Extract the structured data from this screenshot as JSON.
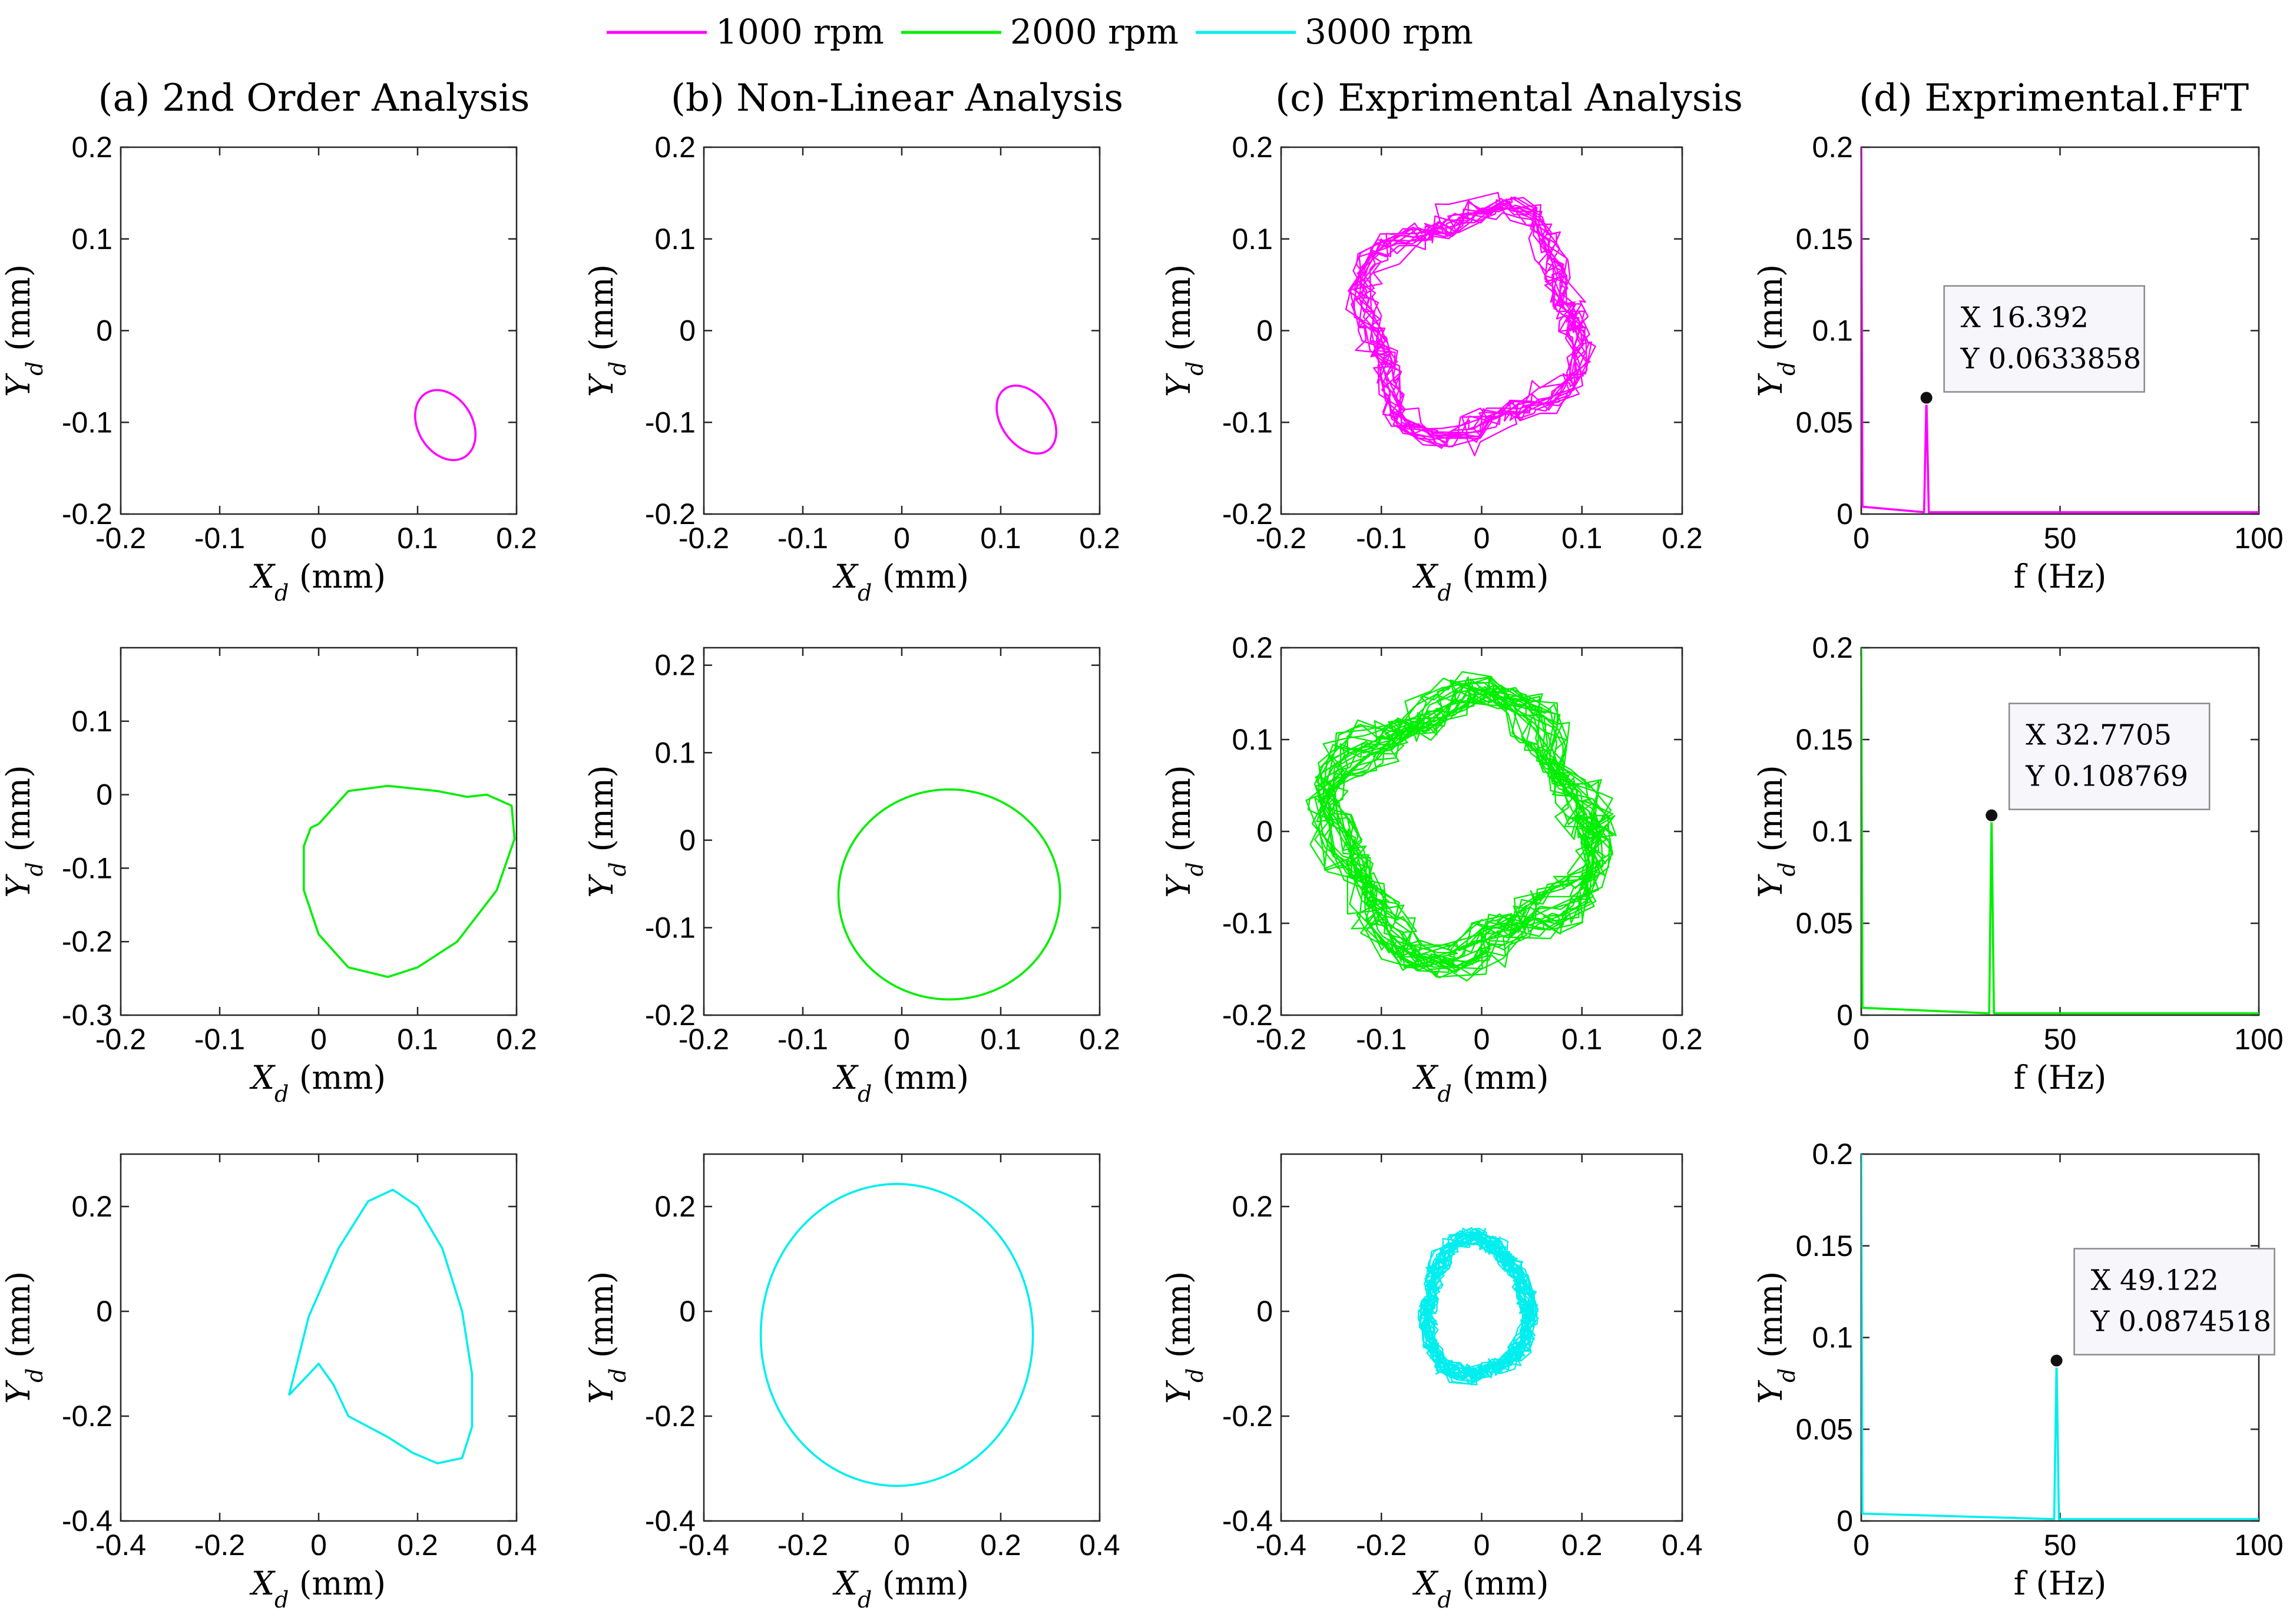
{
  "legend": [
    {
      "label": "1000 rpm",
      "color": "#ff00ff"
    },
    {
      "label": "2000 rpm",
      "color": "#00ee00"
    },
    {
      "label": "3000 rpm",
      "color": "#00eeee"
    }
  ],
  "column_titles": [
    "(a) 2nd Order Analysis",
    "(b) Non-Linear Analysis",
    "(c) Exprimental Analysis",
    "(d) Exprimental.FFT"
  ],
  "chart_data": [
    {
      "id": "a1",
      "type": "line",
      "kind": "orbit",
      "series": [
        {
          "name": "1000 rpm",
          "cx": 0.128,
          "cy": -0.103,
          "rx": 0.028,
          "ry": 0.04,
          "rot": 25
        }
      ],
      "xlim": [
        -0.2,
        0.2
      ],
      "ylim": [
        -0.2,
        0.2
      ],
      "xticks": [
        -0.2,
        -0.1,
        0,
        0.1,
        0.2
      ],
      "yticks": [
        0.2,
        0.1,
        0,
        -0.1,
        -0.2
      ],
      "xtick_labels": [
        "-0.2",
        "-0.1",
        "0",
        "0.1",
        "0.2"
      ],
      "ytick_labels": [
        "0.2",
        "0.1",
        "0",
        "-0.1",
        "-0.2"
      ],
      "xlabel": "X_d (mm)",
      "ylabel": "Y_d (mm)"
    },
    {
      "id": "b1",
      "type": "line",
      "kind": "orbit",
      "series": [
        {
          "name": "1000 rpm",
          "cx": 0.126,
          "cy": -0.097,
          "rx": 0.026,
          "ry": 0.04,
          "rot": 30
        }
      ],
      "xlim": [
        -0.2,
        0.2
      ],
      "ylim": [
        -0.2,
        0.2
      ],
      "xticks": [
        -0.2,
        -0.1,
        0,
        0.1,
        0.2
      ],
      "yticks": [
        0.2,
        0.1,
        0,
        -0.1,
        -0.2
      ],
      "xtick_labels": [
        "-0.2",
        "-0.1",
        "0",
        "0.1",
        "0.2"
      ],
      "ytick_labels": [
        "0.2",
        "0.1",
        "0",
        "-0.1",
        "-0.2"
      ],
      "xlabel": "X_d (mm)",
      "ylabel": "Y_d (mm)"
    },
    {
      "id": "c1",
      "type": "line",
      "kind": "orbit-experimental",
      "series": [
        {
          "name": "1000 rpm",
          "cx": -0.01,
          "cy": 0.01,
          "rx": 0.105,
          "ry": 0.12,
          "harmonic": 4,
          "amp": 0.015,
          "noise": 0.012,
          "loops": 14
        }
      ],
      "xlim": [
        -0.2,
        0.2
      ],
      "ylim": [
        -0.2,
        0.2
      ],
      "xticks": [
        -0.2,
        -0.1,
        0,
        0.1,
        0.2
      ],
      "yticks": [
        0.2,
        0.1,
        0,
        -0.1,
        -0.2
      ],
      "xtick_labels": [
        "-0.2",
        "-0.1",
        "0",
        "0.1",
        "0.2"
      ],
      "ytick_labels": [
        "0.2",
        "0.1",
        "0",
        "-0.1",
        "-0.2"
      ],
      "xlabel": "X_d (mm)",
      "ylabel": "Y_d (mm)"
    },
    {
      "id": "d1",
      "type": "line",
      "kind": "fft",
      "series": [
        {
          "name": "1000 rpm",
          "peak_x": 16.392,
          "peak_y": 0.0633858,
          "edge_y": 0.2
        }
      ],
      "datatip": {
        "x_label": "X 16.392",
        "y_label": "Y 0.0633858",
        "x": 16.392,
        "y": 0.0633858
      },
      "xlim": [
        0,
        100
      ],
      "ylim": [
        0,
        0.2
      ],
      "xticks": [
        0,
        50,
        100
      ],
      "yticks": [
        0.2,
        0.15,
        0.1,
        0.05,
        0
      ],
      "xtick_labels": [
        "0",
        "50",
        "100"
      ],
      "ytick_labels": [
        "0.2",
        "0.15",
        "0.1",
        "0.05",
        "0"
      ],
      "xlabel": "f (Hz)",
      "ylabel": "Y_d (mm)"
    },
    {
      "id": "a2",
      "type": "line",
      "kind": "orbit-points",
      "series": [
        {
          "name": "2000 rpm",
          "points": [
            [
              0,
              -0.04
            ],
            [
              0.03,
              0.005
            ],
            [
              0.07,
              0.012
            ],
            [
              0.12,
              0.005
            ],
            [
              0.15,
              -0.003
            ],
            [
              0.17,
              0.0
            ],
            [
              0.195,
              -0.015
            ],
            [
              0.198,
              -0.06
            ],
            [
              0.18,
              -0.13
            ],
            [
              0.14,
              -0.2
            ],
            [
              0.1,
              -0.235
            ],
            [
              0.07,
              -0.248
            ],
            [
              0.03,
              -0.235
            ],
            [
              0.0,
              -0.19
            ],
            [
              -0.015,
              -0.13
            ],
            [
              -0.015,
              -0.07
            ],
            [
              -0.008,
              -0.045
            ],
            [
              0,
              -0.04
            ]
          ]
        }
      ],
      "xlim": [
        -0.2,
        0.2
      ],
      "ylim": [
        -0.3,
        0.2
      ],
      "xticks": [
        -0.2,
        -0.1,
        0,
        0.1,
        0.2
      ],
      "yticks": [
        0.1,
        0,
        -0.1,
        -0.2,
        -0.3
      ],
      "xtick_labels": [
        "-0.2",
        "-0.1",
        "0",
        "0.1",
        "0.2"
      ],
      "ytick_labels": [
        "0.1",
        "0",
        "-0.1",
        "-0.2",
        "-0.3"
      ],
      "xlabel": "X_d (mm)",
      "ylabel": "Y_d (mm)"
    },
    {
      "id": "b2",
      "type": "line",
      "kind": "orbit",
      "series": [
        {
          "name": "2000 rpm",
          "cx": 0.048,
          "cy": -0.062,
          "rx": 0.112,
          "ry": 0.12,
          "rot": 0
        }
      ],
      "xlim": [
        -0.2,
        0.2
      ],
      "ylim": [
        -0.2,
        0.22
      ],
      "xticks": [
        -0.2,
        -0.1,
        0,
        0.1,
        0.2
      ],
      "yticks": [
        0.2,
        0.1,
        0,
        -0.1,
        -0.2
      ],
      "xtick_labels": [
        "-0.2",
        "-0.1",
        "0",
        "0.1",
        "0.2"
      ],
      "ytick_labels": [
        "0.2",
        "0.1",
        "0",
        "-0.1",
        "-0.2"
      ],
      "xlabel": "X_d (mm)",
      "ylabel": "Y_d (mm)"
    },
    {
      "id": "c2",
      "type": "line",
      "kind": "orbit-experimental",
      "series": [
        {
          "name": "2000 rpm",
          "cx": -0.02,
          "cy": 0.005,
          "rx": 0.125,
          "ry": 0.135,
          "harmonic": 4,
          "amp": 0.02,
          "noise": 0.014,
          "loops": 24
        }
      ],
      "xlim": [
        -0.2,
        0.2
      ],
      "ylim": [
        -0.2,
        0.2
      ],
      "xticks": [
        -0.2,
        -0.1,
        0,
        0.1,
        0.2
      ],
      "yticks": [
        0.2,
        0.1,
        0,
        -0.1,
        -0.2
      ],
      "xtick_labels": [
        "-0.2",
        "-0.1",
        "0",
        "0.1",
        "0.2"
      ],
      "ytick_labels": [
        "0.2",
        "0.1",
        "0",
        "-0.1",
        "-0.2"
      ],
      "xlabel": "X_d (mm)",
      "ylabel": "Y_d (mm)"
    },
    {
      "id": "d2",
      "type": "line",
      "kind": "fft",
      "series": [
        {
          "name": "2000 rpm",
          "peak_x": 32.7705,
          "peak_y": 0.108769,
          "edge_y": 0.2
        }
      ],
      "datatip": {
        "x_label": "X 32.7705",
        "y_label": "Y 0.108769",
        "x": 32.7705,
        "y": 0.108769
      },
      "xlim": [
        0,
        100
      ],
      "ylim": [
        0,
        0.2
      ],
      "xticks": [
        0,
        50,
        100
      ],
      "yticks": [
        0.2,
        0.15,
        0.1,
        0.05,
        0
      ],
      "xtick_labels": [
        "0",
        "50",
        "100"
      ],
      "ytick_labels": [
        "0.2",
        "0.15",
        "0.1",
        "0.05",
        "0"
      ],
      "xlabel": "f (Hz)",
      "ylabel": "Y_d (mm)"
    },
    {
      "id": "a3",
      "type": "line",
      "kind": "orbit-points",
      "series": [
        {
          "name": "3000 rpm",
          "points": [
            [
              -0.06,
              -0.16
            ],
            [
              -0.02,
              -0.01
            ],
            [
              0.04,
              0.12
            ],
            [
              0.1,
              0.21
            ],
            [
              0.15,
              0.232
            ],
            [
              0.2,
              0.2
            ],
            [
              0.25,
              0.12
            ],
            [
              0.29,
              0.0
            ],
            [
              0.31,
              -0.12
            ],
            [
              0.31,
              -0.22
            ],
            [
              0.29,
              -0.28
            ],
            [
              0.24,
              -0.29
            ],
            [
              0.19,
              -0.27
            ],
            [
              0.14,
              -0.24
            ],
            [
              0.1,
              -0.22
            ],
            [
              0.06,
              -0.2
            ],
            [
              0.03,
              -0.14
            ],
            [
              0.0,
              -0.1
            ],
            [
              -0.02,
              -0.12
            ],
            [
              -0.06,
              -0.16
            ]
          ]
        }
      ],
      "xlim": [
        -0.4,
        0.4
      ],
      "ylim": [
        -0.4,
        0.3
      ],
      "xticks": [
        -0.4,
        -0.2,
        0,
        0.2,
        0.4
      ],
      "yticks": [
        0.2,
        0,
        -0.2,
        -0.4
      ],
      "xtick_labels": [
        "-0.4",
        "-0.2",
        "0",
        "0.2",
        "0.4"
      ],
      "ytick_labels": [
        "0.2",
        "0",
        "-0.2",
        "-0.4"
      ],
      "xlabel": "X_d (mm)",
      "ylabel": "Y_d (mm)"
    },
    {
      "id": "b3",
      "type": "line",
      "kind": "orbit",
      "series": [
        {
          "name": "3000 rpm",
          "cx": -0.01,
          "cy": -0.045,
          "rx": 0.275,
          "ry": 0.288,
          "rot": 0
        }
      ],
      "xlim": [
        -0.4,
        0.4
      ],
      "ylim": [
        -0.4,
        0.3
      ],
      "xticks": [
        -0.4,
        -0.2,
        0,
        0.2,
        0.4
      ],
      "yticks": [
        0.2,
        0,
        -0.2,
        -0.4
      ],
      "xtick_labels": [
        "-0.4",
        "-0.2",
        "0",
        "0.2",
        "0.4"
      ],
      "ytick_labels": [
        "0.2",
        "0",
        "-0.2",
        "-0.4"
      ],
      "xlabel": "X_d (mm)",
      "ylabel": "Y_d (mm)"
    },
    {
      "id": "c3",
      "type": "line",
      "kind": "orbit-experimental",
      "series": [
        {
          "name": "3000 rpm",
          "cx": -0.01,
          "cy": 0.005,
          "rx": 0.1,
          "ry": 0.13,
          "harmonic": 3,
          "amp": 0.01,
          "noise": 0.016,
          "loops": 22
        }
      ],
      "xlim": [
        -0.4,
        0.4
      ],
      "ylim": [
        -0.4,
        0.3
      ],
      "xticks": [
        -0.4,
        -0.2,
        0,
        0.2,
        0.4
      ],
      "yticks": [
        0.2,
        0,
        -0.2,
        -0.4
      ],
      "xtick_labels": [
        "-0.4",
        "-0.2",
        "0",
        "0.2",
        "0.4"
      ],
      "ytick_labels": [
        "0.2",
        "0",
        "-0.2",
        "-0.4"
      ],
      "xlabel": "X_d (mm)",
      "ylabel": "Y_d (mm)"
    },
    {
      "id": "d3",
      "type": "line",
      "kind": "fft",
      "series": [
        {
          "name": "3000 rpm",
          "peak_x": 49.122,
          "peak_y": 0.0874518,
          "edge_y": 0.2
        }
      ],
      "datatip": {
        "x_label": "X 49.122",
        "y_label": "Y 0.0874518",
        "x": 49.122,
        "y": 0.0874518
      },
      "xlim": [
        0,
        100
      ],
      "ylim": [
        0,
        0.2
      ],
      "xticks": [
        0,
        50,
        100
      ],
      "yticks": [
        0.2,
        0.15,
        0.1,
        0.05,
        0
      ],
      "xtick_labels": [
        "0",
        "50",
        "100"
      ],
      "ytick_labels": [
        "0.2",
        "0.15",
        "0.1",
        "0.05",
        "0"
      ],
      "xlabel": "f (Hz)",
      "ylabel": "Y_d (mm)"
    }
  ]
}
